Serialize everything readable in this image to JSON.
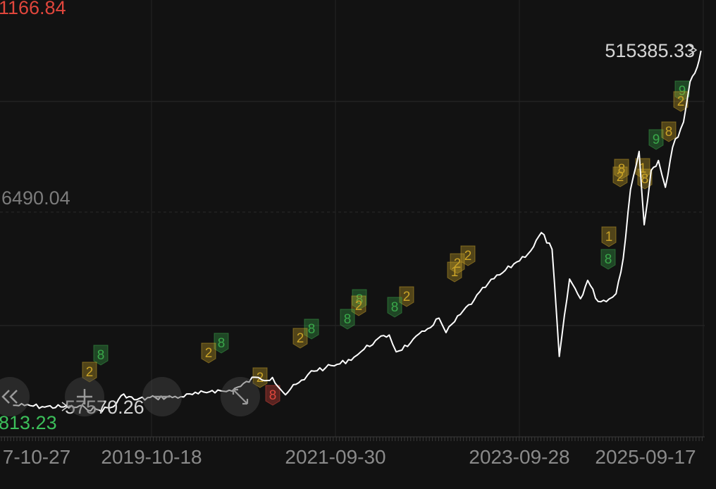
{
  "chart_data": {
    "type": "line",
    "series": [
      {
        "points": [
          [
            "2017-10-27",
            57600
          ],
          [
            "2017-12-15",
            57200
          ],
          [
            "2018-03-01",
            55800
          ],
          [
            "2018-06-01",
            55400
          ],
          [
            "2018-09-01",
            54600
          ],
          [
            "2018-11-01",
            51300
          ],
          [
            "2019-01-01",
            55600
          ],
          [
            "2019-02-15",
            72300
          ],
          [
            "2019-04-01",
            64900
          ],
          [
            "2019-07-01",
            67600
          ],
          [
            "2019-10-18",
            68800
          ],
          [
            "2020-01-01",
            72600
          ],
          [
            "2020-03-01",
            77000
          ],
          [
            "2020-05-01",
            75600
          ],
          [
            "2020-07-01",
            82300
          ],
          [
            "2020-09-01",
            94300
          ],
          [
            "2020-10-01",
            90800
          ],
          [
            "2020-11-15",
            94000
          ],
          [
            "2021-01-10",
            71300
          ],
          [
            "2021-02-01",
            79100
          ],
          [
            "2021-04-01",
            91100
          ],
          [
            "2021-05-01",
            102700
          ],
          [
            "2021-07-01",
            106600
          ],
          [
            "2021-09-01",
            111800
          ],
          [
            "2021-11-01",
            120700
          ],
          [
            "2021-12-01",
            127900
          ],
          [
            "2022-02-01",
            142300
          ],
          [
            "2022-04-01",
            149700
          ],
          [
            "2022-05-01",
            127600
          ],
          [
            "2022-07-01",
            139100
          ],
          [
            "2022-09-01",
            154700
          ],
          [
            "2022-11-01",
            171700
          ],
          [
            "2022-12-01",
            152700
          ],
          [
            "2023-02-01",
            176600
          ],
          [
            "2023-04-01",
            195600
          ],
          [
            "2023-06-01",
            217300
          ],
          [
            "2023-08-01",
            231100
          ],
          [
            "2023-10-01",
            245300
          ],
          [
            "2023-12-01",
            260300
          ],
          [
            "2024-01-15",
            283800
          ],
          [
            "2024-03-01",
            261800
          ],
          [
            "2024-04-01",
            121500
          ],
          [
            "2024-05-15",
            223000
          ],
          [
            "2024-07-01",
            197100
          ],
          [
            "2024-08-01",
            221200
          ],
          [
            "2024-09-15",
            193500
          ],
          [
            "2024-11-01",
            196800
          ],
          [
            "2024-12-01",
            203800
          ],
          [
            "2025-01-01",
            250300
          ],
          [
            "2025-02-01",
            340400
          ],
          [
            "2025-03-10",
            390100
          ],
          [
            "2025-04-01",
            294000
          ],
          [
            "2025-05-01",
            365300
          ],
          [
            "2025-06-01",
            378200
          ],
          [
            "2025-07-01",
            343100
          ],
          [
            "2025-08-01",
            395500
          ],
          [
            "2025-09-17",
            428500
          ],
          [
            "2025-10-15",
            481400
          ],
          [
            "2025-11-15",
            500700
          ],
          [
            "2025-12-01",
            522000
          ]
        ]
      }
    ],
    "y_labels": {
      "top": "1166.84",
      "mid": "6490.04",
      "low": "813.23"
    },
    "max_label": "515385.33",
    "min_label": "57570.26",
    "x_ticks": [
      "7-10-27",
      "2019-10-18",
      "2021-09-30",
      "2023-09-28",
      "2025-09-17"
    ],
    "grid": true,
    "trade_markers": [
      {
        "text": "8",
        "color": "#3aa84a"
      },
      {
        "text": "2",
        "color": "#c9a227"
      },
      {
        "text": "8",
        "color": "#3aa84a"
      },
      {
        "text": "2",
        "color": "#c9a227"
      },
      {
        "text": "2",
        "color": "#c9a227"
      },
      {
        "text": "8",
        "color": "#e0463c"
      },
      {
        "text": "8",
        "color": "#3aa84a"
      },
      {
        "text": "2",
        "color": "#c9a227"
      },
      {
        "text": "8",
        "color": "#3aa84a"
      },
      {
        "text": "2",
        "color": "#c9a227"
      },
      {
        "text": "8",
        "color": "#3aa84a"
      },
      {
        "text": "2",
        "color": "#c9a227"
      },
      {
        "text": "8",
        "color": "#3aa84a"
      },
      {
        "text": "2",
        "color": "#c9a227"
      },
      {
        "text": "2",
        "color": "#c9a227"
      },
      {
        "text": "1",
        "color": "#c9a227"
      },
      {
        "text": "1",
        "color": "#c9a227"
      },
      {
        "text": "8",
        "color": "#3aa84a"
      },
      {
        "text": "8",
        "color": "#c9a227"
      },
      {
        "text": "2",
        "color": "#c9a227"
      },
      {
        "text": "1",
        "color": "#c9a227"
      },
      {
        "text": "8",
        "color": "#c9a227"
      },
      {
        "text": "9",
        "color": "#3aa84a"
      },
      {
        "text": "2",
        "color": "#c9a227"
      },
      {
        "text": "9",
        "color": "#3aa84a"
      },
      {
        "text": "8",
        "color": "#c9a227"
      }
    ],
    "line_color": "#ffffff",
    "background": "#121212"
  },
  "controls": {
    "rewind_icon": "double-chevron-left-icon",
    "zoom_in_icon": "plus-icon",
    "zoom_out_icon": "minus-icon",
    "fullscreen_icon": "expand-arrows-icon"
  }
}
